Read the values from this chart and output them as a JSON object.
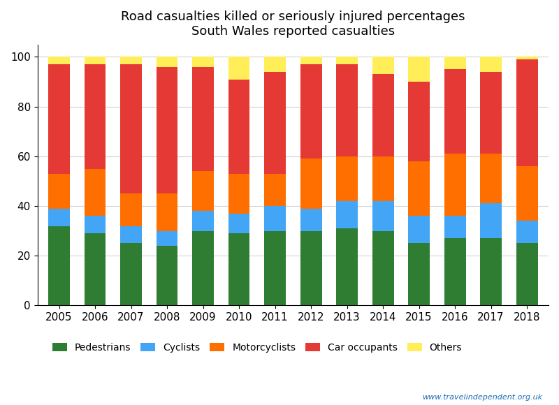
{
  "years": [
    2005,
    2006,
    2007,
    2008,
    2009,
    2010,
    2011,
    2012,
    2013,
    2014,
    2015,
    2016,
    2017,
    2018
  ],
  "pedestrians": [
    32,
    29,
    25,
    24,
    30,
    29,
    30,
    30,
    31,
    30,
    25,
    27,
    27,
    25
  ],
  "cyclists": [
    7,
    7,
    7,
    6,
    8,
    8,
    10,
    9,
    11,
    12,
    11,
    9,
    14,
    9
  ],
  "motorcyclists": [
    14,
    19,
    13,
    15,
    16,
    16,
    13,
    20,
    18,
    18,
    22,
    25,
    20,
    22
  ],
  "car_occupants": [
    44,
    42,
    52,
    51,
    42,
    38,
    41,
    38,
    37,
    33,
    32,
    34,
    33,
    43
  ],
  "others": [
    3,
    3,
    3,
    4,
    4,
    9,
    6,
    3,
    3,
    7,
    10,
    5,
    6,
    1
  ],
  "colors": {
    "pedestrians": "#2e7d32",
    "cyclists": "#42a5f5",
    "motorcyclists": "#ff6f00",
    "car_occupants": "#e53935",
    "others": "#ffee58"
  },
  "title_line1": "Road casualties killed or seriously injured percentages",
  "title_line2": "South Wales reported casualties",
  "ylim": [
    0,
    105
  ],
  "yticks": [
    0,
    20,
    40,
    60,
    80,
    100
  ],
  "legend_labels": [
    "Pedestrians",
    "Cyclists",
    "Motorcyclists",
    "Car occupants",
    "Others"
  ],
  "watermark": "www.travelindependent.org.uk"
}
